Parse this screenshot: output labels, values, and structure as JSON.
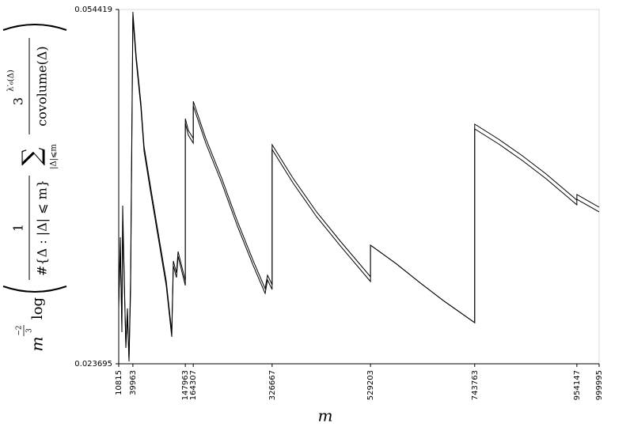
{
  "chart_data": {
    "type": "line",
    "xlabel": "m",
    "ylabel": {
      "m": "m",
      "exp_num": "−2",
      "exp_den": "3",
      "log": "log",
      "num1": "1",
      "den1": "#{Δ : |Δ| ⩽ m}",
      "sum": "∑",
      "sum_sub": "|Δ|⩽m",
      "num2": "3",
      "num2_sup": "λ′₆(Δ)",
      "den2": "covolume(Δ)"
    },
    "xlim": [
      10815,
      999995
    ],
    "ylim": [
      0.023695,
      0.054419
    ],
    "xticks": [
      10815,
      39963,
      147963,
      164307,
      326667,
      529203,
      743763,
      954147,
      999995
    ],
    "yticks": [
      0.023695,
      0.054419
    ],
    "x": [
      10815,
      14074,
      17333,
      18963,
      22222,
      25481,
      28741,
      32000,
      35259,
      39963,
      46666,
      56444,
      62962,
      75999,
      92295,
      108591,
      119998,
      123257,
      129776,
      133035,
      147963,
      147963,
      154220,
      164307,
      164307,
      190071,
      222663,
      255255,
      287847,
      312291,
      317180,
      326667,
      326667,
      369327,
      418215,
      467103,
      529203,
      529203,
      581175,
      630063,
      678951,
      743763,
      743763,
      793023,
      841911,
      890799,
      954147,
      954147,
      999995
    ],
    "series": [
      {
        "color": "#000000",
        "values": [
          0.028496,
          0.034668,
          0.026438,
          0.037411,
          0.031239,
          0.025067,
          0.02781,
          0.024038,
          0.031239,
          0.054213,
          0.050441,
          0.046327,
          0.042555,
          0.039126,
          0.035011,
          0.030896,
          0.026438,
          0.032611,
          0.031582,
          0.033434,
          0.030896,
          0.044955,
          0.043926,
          0.04324,
          0.046464,
          0.04324,
          0.039811,
          0.03604,
          0.032611,
          0.03021,
          0.031376,
          0.030553,
          0.042692,
          0.039811,
          0.036863,
          0.034325,
          0.031239,
          0.033982,
          0.032405,
          0.030759,
          0.029182,
          0.027261,
          0.044475,
          0.043172,
          0.041732,
          0.040154,
          0.037891,
          0.038371,
          0.037274
        ]
      },
      {
        "color": "#000000",
        "values": [
          0.029,
          0.0335,
          0.027,
          0.036,
          0.0305,
          0.0255,
          0.0285,
          0.0239,
          0.03,
          0.0537,
          0.05003,
          0.045916,
          0.042144,
          0.038715,
          0.0346,
          0.030485,
          0.026027,
          0.0322,
          0.031171,
          0.033023,
          0.030485,
          0.044544,
          0.043515,
          0.042829,
          0.046053,
          0.042829,
          0.0394,
          0.035629,
          0.0322,
          0.029799,
          0.030965,
          0.030142,
          0.042281,
          0.0394,
          0.036452,
          0.033914,
          0.030828,
          0.033982,
          0.032405,
          0.030759,
          0.029182,
          0.027261,
          0.044064,
          0.042761,
          0.041321,
          0.039743,
          0.03748,
          0.03796,
          0.036863
        ]
      }
    ]
  }
}
